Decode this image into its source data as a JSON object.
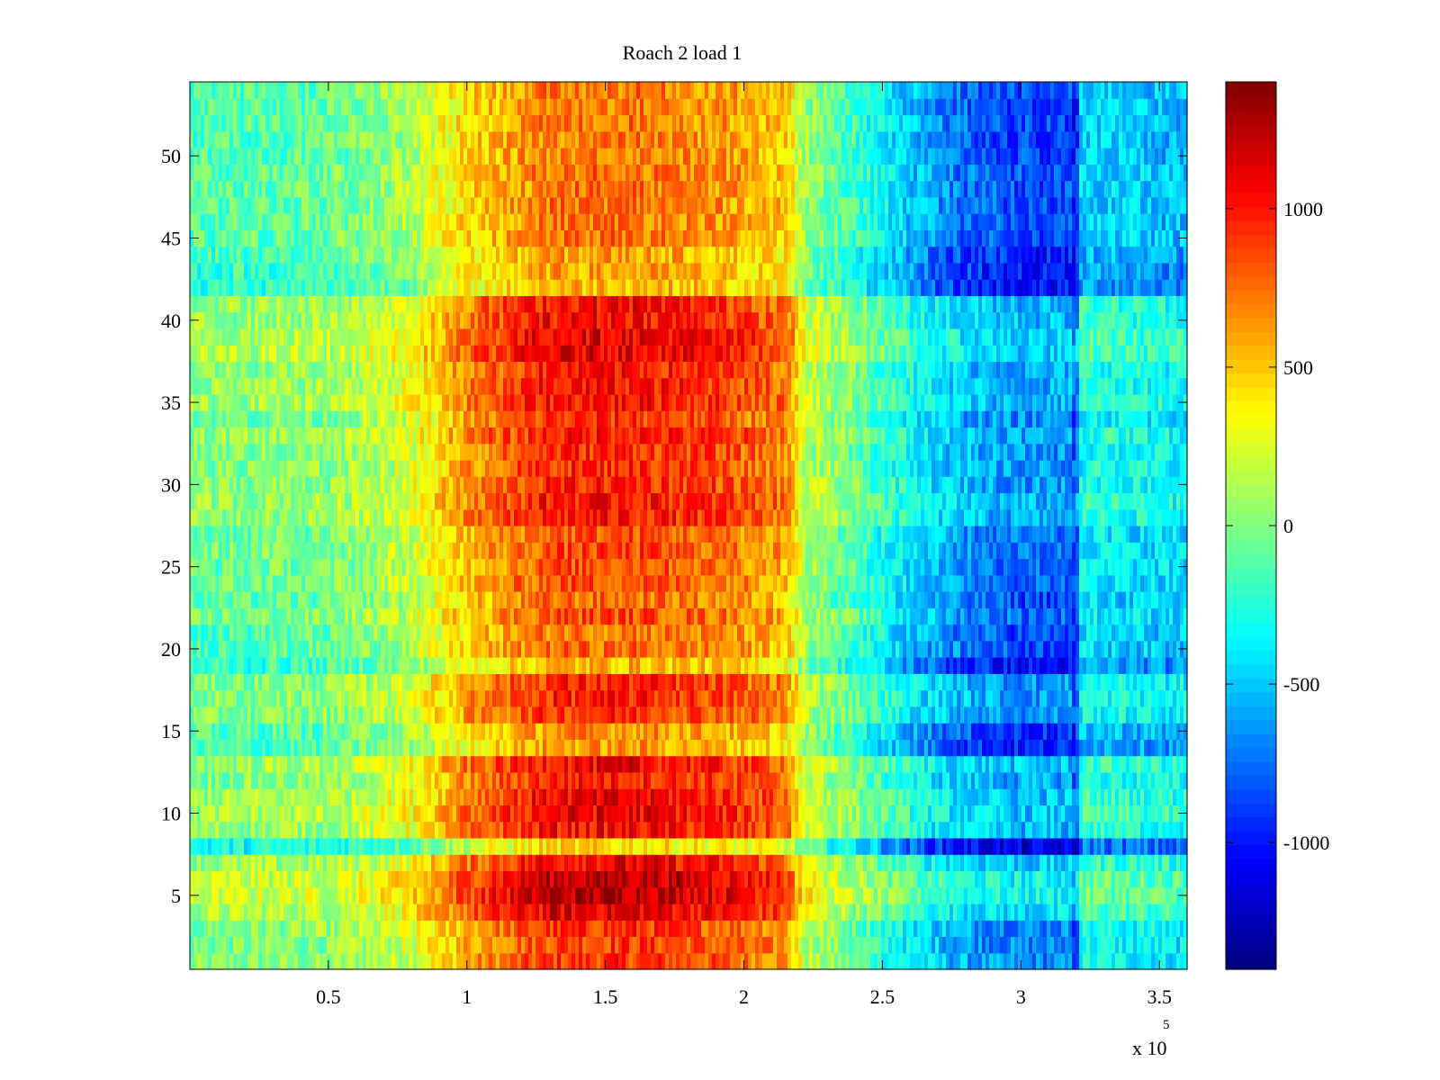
{
  "chart_data": {
    "type": "heatmap",
    "title": "Roach 2 load 1",
    "xlabel": "",
    "ylabel": "",
    "x_multiplier_label": "x 10",
    "x_multiplier_exponent": "5",
    "xlim": [
      0,
      360000
    ],
    "ylim": [
      0.5,
      54.5
    ],
    "x_ticks": [
      {
        "value": 50000,
        "label": "0.5"
      },
      {
        "value": 100000,
        "label": "1"
      },
      {
        "value": 150000,
        "label": "1.5"
      },
      {
        "value": 200000,
        "label": "2"
      },
      {
        "value": 250000,
        "label": "2.5"
      },
      {
        "value": 300000,
        "label": "3"
      },
      {
        "value": 350000,
        "label": "3.5"
      }
    ],
    "y_ticks": [
      {
        "value": 5,
        "label": "5"
      },
      {
        "value": 10,
        "label": "10"
      },
      {
        "value": 15,
        "label": "15"
      },
      {
        "value": 20,
        "label": "20"
      },
      {
        "value": 25,
        "label": "25"
      },
      {
        "value": 30,
        "label": "30"
      },
      {
        "value": 35,
        "label": "35"
      },
      {
        "value": 40,
        "label": "40"
      },
      {
        "value": 45,
        "label": "45"
      },
      {
        "value": 50,
        "label": "50"
      }
    ],
    "colorbar": {
      "colormap": "jet",
      "clim": [
        -1400,
        1400
      ],
      "ticks": [
        {
          "value": 1000,
          "label": "1000"
        },
        {
          "value": 500,
          "label": "500"
        },
        {
          "value": 0,
          "label": "0"
        },
        {
          "value": -500,
          "label": "-500"
        },
        {
          "value": -1000,
          "label": "-1000"
        }
      ]
    },
    "rows": 54,
    "x_range_per_column": [
      0,
      360000
    ],
    "column_profile": {
      "x": [
        0,
        50000,
        80000,
        100000,
        130000,
        160000,
        190000,
        215000,
        222000,
        240000,
        262000,
        280000,
        300000,
        318000,
        322000,
        340000,
        360000
      ],
      "value": [
        -100,
        -50,
        150,
        500,
        780,
        800,
        700,
        560,
        100,
        -150,
        -500,
        -700,
        -800,
        -800,
        -400,
        -450,
        -500
      ]
    },
    "row_bands": [
      {
        "rows": [
          1,
          3
        ],
        "offset": 80
      },
      {
        "rows": [
          4,
          7
        ],
        "offset": 250
      },
      {
        "rows": [
          5,
          6
        ],
        "offset": 100
      },
      {
        "rows": [
          8,
          8
        ],
        "offset": -250
      },
      {
        "rows": [
          9,
          13
        ],
        "offset": 200
      },
      {
        "rows": [
          14,
          15
        ],
        "offset": -150
      },
      {
        "rows": [
          16,
          18
        ],
        "offset": 150
      },
      {
        "rows": [
          19,
          19
        ],
        "offset": -200
      },
      {
        "rows": [
          20,
          23
        ],
        "offset": 0
      },
      {
        "rows": [
          24,
          27
        ],
        "offset": 50
      },
      {
        "rows": [
          28,
          37
        ],
        "offset": 150
      },
      {
        "rows": [
          38,
          41
        ],
        "offset": 230
      },
      {
        "rows": [
          42,
          44
        ],
        "offset": -150
      },
      {
        "rows": [
          45,
          54
        ],
        "offset": -50
      }
    ]
  }
}
